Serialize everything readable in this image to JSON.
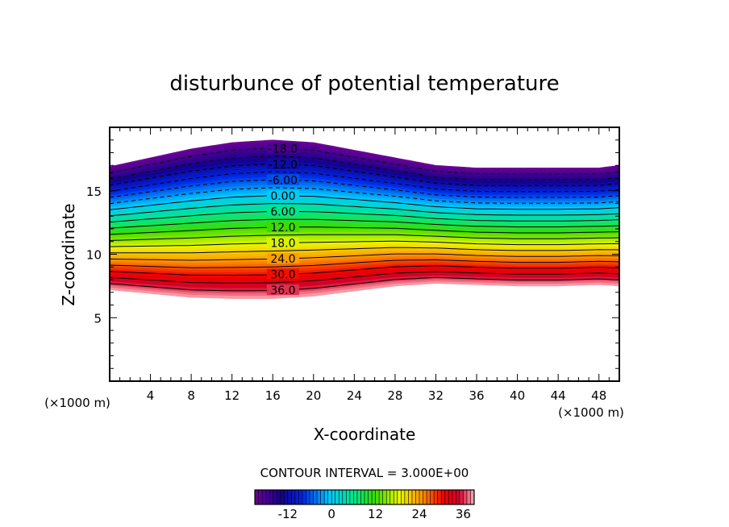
{
  "chart_data": {
    "type": "contour",
    "title": "disturbunce of potential temperature",
    "xlabel": "X-coordinate",
    "ylabel": "Z-coordinate",
    "x_unit": "(×1000 m)",
    "y_unit": "(×1000 m)",
    "xlim": [
      0,
      50
    ],
    "ylim": [
      0,
      20
    ],
    "x_ticks": [
      4,
      8,
      12,
      16,
      20,
      24,
      28,
      32,
      36,
      40,
      44,
      48
    ],
    "y_ticks": [
      5,
      10,
      15
    ],
    "contour_interval_label": "CONTOUR INTERVAL = 3.000E+00",
    "value_min": -21,
    "value_max": 39,
    "contour_interval": 3,
    "layer": {
      "x": [
        0,
        4,
        8,
        12,
        16,
        20,
        24,
        28,
        30,
        32,
        36,
        40,
        44,
        48,
        50
      ],
      "top": [
        16.9,
        17.6,
        18.3,
        18.8,
        19.0,
        18.8,
        18.2,
        17.6,
        17.3,
        17.0,
        16.8,
        16.8,
        16.8,
        16.8,
        17.0
      ],
      "bottom": [
        7.2,
        6.9,
        6.6,
        6.5,
        6.5,
        6.7,
        7.1,
        7.5,
        7.6,
        7.7,
        7.6,
        7.5,
        7.5,
        7.6,
        7.5
      ],
      "values_at_top": -21,
      "values_at_bottom": 39
    },
    "contour_labels": [
      {
        "text": "-18.0",
        "value": -18
      },
      {
        "text": "-12.0",
        "value": -12
      },
      {
        "text": "-6.00",
        "value": -6
      },
      {
        "text": "0.00",
        "value": 0
      },
      {
        "text": "6.00",
        "value": 6
      },
      {
        "text": "12.0",
        "value": 12
      },
      {
        "text": "18.0",
        "value": 18
      },
      {
        "text": "24.0",
        "value": 24
      },
      {
        "text": "30.0",
        "value": 30
      },
      {
        "text": "36.0",
        "value": 36
      }
    ],
    "colorbar": {
      "tick_labels": [
        "-12",
        "0",
        "12",
        "24",
        "36"
      ],
      "tick_values": [
        -12,
        0,
        12,
        24,
        36
      ]
    }
  }
}
